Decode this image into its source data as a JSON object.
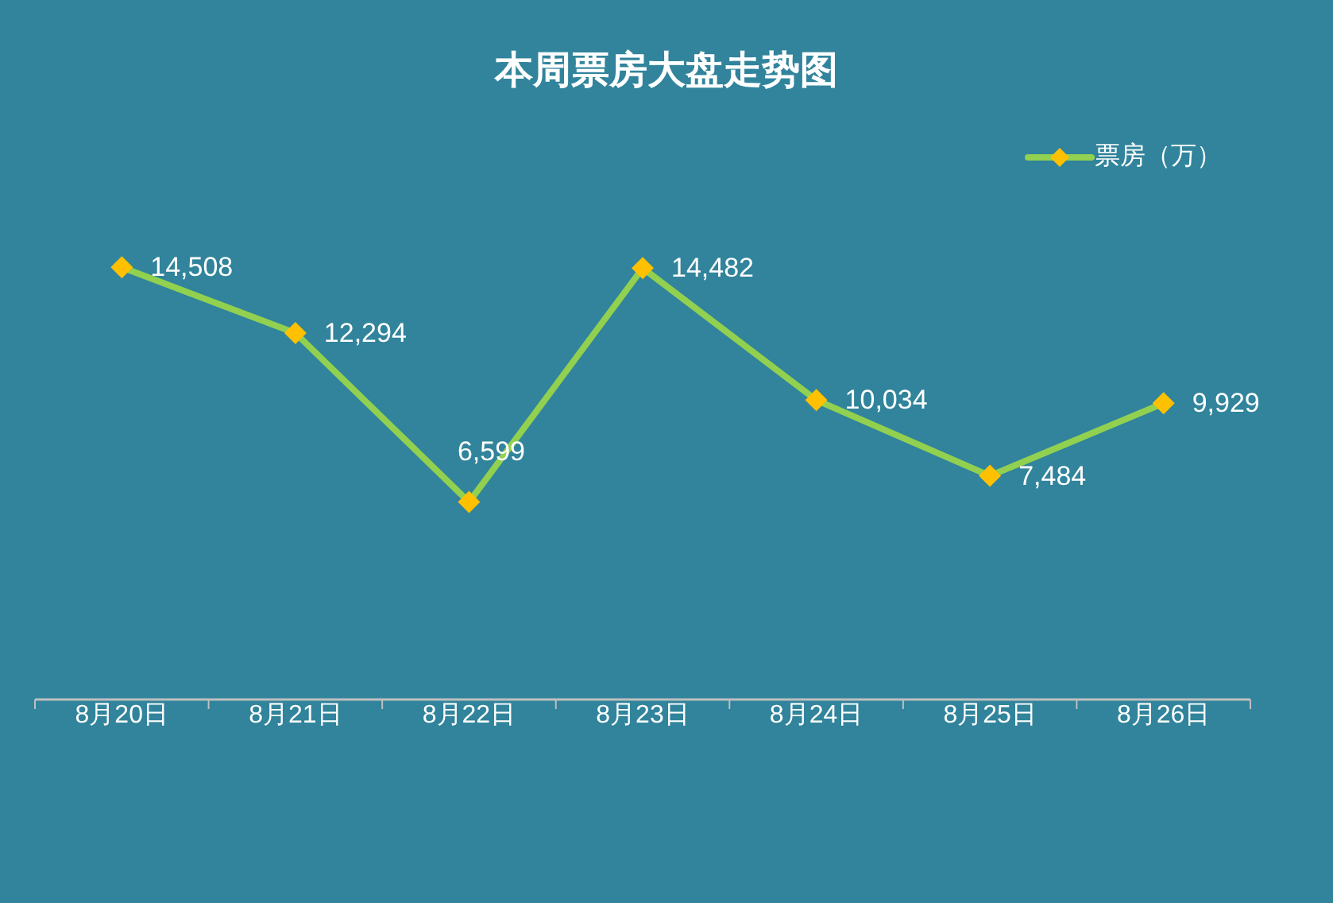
{
  "chart_data": {
    "type": "line",
    "title": "本周票房大盘走势图",
    "categories": [
      "8月20日",
      "8月21日",
      "8月22日",
      "8月23日",
      "8月24日",
      "8月25日",
      "8月26日"
    ],
    "series": [
      {
        "name": "票房（万）",
        "color": "#92d050",
        "values": [
          14508,
          12294,
          6599,
          14482,
          10034,
          7484,
          9929
        ],
        "value_labels": [
          "14,508",
          "12,294",
          "6,599",
          "14,482",
          "10,034",
          "7,484",
          "9,929"
        ]
      }
    ],
    "tick_labels": "x",
    "marker": "diamond",
    "line_style": "solid",
    "legend": "top right",
    "grid": false
  }
}
